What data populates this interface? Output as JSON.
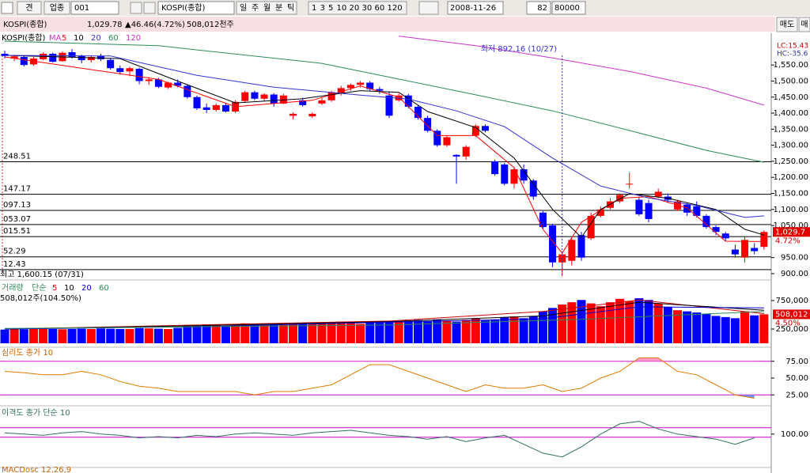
{
  "toolbar": {
    "buttons_left": [
      "견",
      "업종"
    ],
    "code": "001",
    "name": "KOSPI(종합)",
    "periods": [
      "일",
      "주",
      "월",
      "분",
      "틱"
    ],
    "intervals": [
      "1",
      "3",
      "5",
      "10",
      "20",
      "30",
      "60",
      "120"
    ],
    "date": "2008-11-26",
    "count": "82",
    "amount": "80000"
  },
  "info": {
    "name": "KOSPI(종합)",
    "price": "1,029.78",
    "change": "▲46.46(4.72%)",
    "volume": "508,012천주"
  },
  "side_buttons": [
    "매도",
    "매"
  ],
  "side_info": {
    "lc": "LC:15.43",
    "hc": "HC:-35.6"
  },
  "chart_data": [
    {
      "type": "candlestick",
      "title": "KOSPI(종합)",
      "legend_label": "MA",
      "up_color": "#ff0000",
      "down_color": "#0000ff",
      "candles": [
        [
          1585,
          1595,
          1570,
          1578
        ],
        [
          1570,
          1582,
          1562,
          1577
        ],
        [
          1575,
          1578,
          1545,
          1550
        ],
        [
          1552,
          1575,
          1548,
          1570
        ],
        [
          1568,
          1590,
          1565,
          1585
        ],
        [
          1585,
          1588,
          1558,
          1560
        ],
        [
          1562,
          1592,
          1560,
          1588
        ],
        [
          1590,
          1600,
          1570,
          1575
        ],
        [
          1578,
          1582,
          1555,
          1565
        ],
        [
          1565,
          1580,
          1558,
          1575
        ],
        [
          1578,
          1585,
          1562,
          1568
        ],
        [
          1566,
          1572,
          1535,
          1540
        ],
        [
          1540,
          1548,
          1520,
          1528
        ],
        [
          1530,
          1545,
          1515,
          1540
        ],
        [
          1538,
          1542,
          1490,
          1500
        ],
        [
          1500,
          1512,
          1488,
          1505
        ],
        [
          1505,
          1510,
          1478,
          1482
        ],
        [
          1480,
          1498,
          1475,
          1495
        ],
        [
          1495,
          1505,
          1480,
          1485
        ],
        [
          1485,
          1490,
          1445,
          1450
        ],
        [
          1450,
          1455,
          1410,
          1415
        ],
        [
          1418,
          1430,
          1400,
          1410
        ],
        [
          1410,
          1430,
          1405,
          1425
        ],
        [
          1425,
          1432,
          1402,
          1405
        ],
        [
          1405,
          1440,
          1400,
          1435
        ],
        [
          1438,
          1470,
          1432,
          1465
        ],
        [
          1465,
          1470,
          1440,
          1445
        ],
        [
          1445,
          1462,
          1438,
          1458
        ],
        [
          1458,
          1462,
          1420,
          1430
        ],
        [
          1430,
          1460,
          1428,
          1455
        ],
        [
          1392,
          1402,
          1380,
          1398
        ],
        [
          1440,
          1448,
          1420,
          1425
        ],
        [
          1390,
          1402,
          1385,
          1398
        ],
        [
          1430,
          1448,
          1425,
          1440
        ],
        [
          1440,
          1470,
          1435,
          1465
        ],
        [
          1462,
          1485,
          1455,
          1478
        ],
        [
          1478,
          1492,
          1470,
          1488
        ],
        [
          1488,
          1500,
          1480,
          1495
        ],
        [
          1495,
          1500,
          1470,
          1475
        ],
        [
          1475,
          1482,
          1460,
          1470
        ],
        [
          1455,
          1468,
          1385,
          1392
        ],
        [
          1440,
          1462,
          1435,
          1455
        ],
        [
          1455,
          1460,
          1415,
          1420
        ],
        [
          1420,
          1425,
          1380,
          1385
        ],
        [
          1385,
          1392,
          1340,
          1345
        ],
        [
          1345,
          1350,
          1295,
          1300
        ],
        [
          1300,
          1330,
          1295,
          1325
        ],
        [
          1270,
          1272,
          1180,
          1265
        ],
        [
          1265,
          1300,
          1255,
          1295
        ],
        [
          1330,
          1365,
          1325,
          1360
        ],
        [
          1360,
          1365,
          1340,
          1345
        ],
        [
          1250,
          1255,
          1205,
          1210
        ],
        [
          1240,
          1245,
          1175,
          1180
        ],
        [
          1180,
          1232,
          1165,
          1225
        ],
        [
          1225,
          1240,
          1180,
          1190
        ],
        [
          1190,
          1195,
          1130,
          1140
        ],
        [
          1090,
          1095,
          1040,
          1045
        ],
        [
          1050,
          1055,
          920,
          935
        ],
        [
          935,
          965,
          892.16,
          960
        ],
        [
          940,
          1015,
          925,
          1005
        ],
        [
          1020,
          1030,
          940,
          950
        ],
        [
          1010,
          1090,
          1005,
          1080
        ],
        [
          1080,
          1110,
          1075,
          1100
        ],
        [
          1105,
          1135,
          1100,
          1125
        ],
        [
          1125,
          1150,
          1120,
          1145
        ],
        [
          1180,
          1215,
          1165,
          1180
        ],
        [
          1130,
          1140,
          1080,
          1085
        ],
        [
          1120,
          1130,
          1060,
          1070
        ],
        [
          1140,
          1165,
          1135,
          1155
        ],
        [
          1140,
          1150,
          1120,
          1130
        ],
        [
          1100,
          1130,
          1095,
          1125
        ],
        [
          1115,
          1120,
          1080,
          1090
        ],
        [
          1110,
          1125,
          1075,
          1080
        ],
        [
          1080,
          1085,
          1040,
          1045
        ],
        [
          1045,
          1050,
          1020,
          1030
        ],
        [
          1025,
          1030,
          1000,
          1010
        ],
        [
          975,
          990,
          950,
          960
        ],
        [
          950,
          1015,
          935,
          1005
        ],
        [
          980,
          995,
          960,
          970
        ],
        [
          983.32,
          1035,
          975,
          1029.78
        ]
      ],
      "series": [
        {
          "name": "5",
          "color": "#ff0000",
          "x": [
            0,
            16,
            24,
            32,
            37,
            41,
            45,
            49,
            53,
            56,
            58,
            60,
            64,
            67,
            71,
            75,
            79
          ],
          "values": [
            1575,
            1505,
            1420,
            1440,
            1485,
            1450,
            1330,
            1330,
            1230,
            1038,
            964,
            1060,
            1135,
            1140,
            1105,
            1001,
            1000
          ]
        },
        {
          "name": "10",
          "color": "#000000",
          "x": [
            0,
            12,
            18,
            24,
            31,
            37,
            41,
            44,
            49,
            53,
            57,
            60,
            62,
            65,
            69,
            74,
            77,
            79
          ],
          "values": [
            1580,
            1570,
            1500,
            1432,
            1445,
            1470,
            1465,
            1405,
            1355,
            1260,
            1100,
            1013,
            1100,
            1149,
            1135,
            1100,
            1038,
            1020
          ]
        },
        {
          "name": "20",
          "color": "#3333cc",
          "x": [
            0,
            11,
            20,
            28,
            37,
            42,
            47,
            52,
            57,
            62,
            67,
            72,
            77,
            79
          ],
          "values": [
            1580,
            1578,
            1518,
            1481,
            1456,
            1444,
            1407,
            1358,
            1260,
            1173,
            1136,
            1112,
            1075,
            1080
          ]
        },
        {
          "name": "60",
          "color": "#2e8b57",
          "x": [
            0,
            16,
            33,
            41,
            49,
            57,
            65,
            73,
            79
          ],
          "values": [
            1624,
            1610,
            1555,
            1506,
            1457,
            1407,
            1346,
            1284,
            1247
          ]
        },
        {
          "name": "120",
          "color": "#cc33cc",
          "x": [
            41,
            49,
            57,
            65,
            73,
            79
          ],
          "values": [
            1640,
            1610,
            1572,
            1530,
            1478,
            1425
          ]
        }
      ],
      "ylim": [
        890,
        1649
      ],
      "yticks": [
        {
          "value": 900,
          "label": "900.00"
        },
        {
          "value": 950,
          "label": "950.00"
        },
        {
          "value": 1050,
          "label": "1,050.00"
        },
        {
          "value": 1100,
          "label": "1,100.00"
        },
        {
          "value": 1150,
          "label": "1,150.00"
        },
        {
          "value": 1200,
          "label": "1,200.00"
        },
        {
          "value": 1250,
          "label": "1,250.00"
        },
        {
          "value": 1300,
          "label": "1,300.00"
        },
        {
          "value": 1350,
          "label": "1,350.00"
        },
        {
          "value": 1400,
          "label": "1,400.00"
        },
        {
          "value": 1450,
          "label": "1,450.00"
        },
        {
          "value": 1500,
          "label": "1,500.00"
        },
        {
          "value": 1550,
          "label": "1,550.00"
        }
      ],
      "levels": [
        {
          "value": 1248.51,
          "label": "248.51"
        },
        {
          "value": 1147.17,
          "label": "147.17"
        },
        {
          "value": 1097.13,
          "label": "097.13"
        },
        {
          "value": 1053.07,
          "label": "053.07"
        },
        {
          "value": 1015.51,
          "label": "015.51"
        },
        {
          "value": 952.29,
          "label": "52.29"
        },
        {
          "value": 912.43,
          "label": "12.43"
        }
      ],
      "level_color": "#000000",
      "low": {
        "label": "최저 892.16 (10/27)",
        "x": 58
      },
      "high": {
        "label": "최고 1,600.15 (07/31)"
      },
      "last_label": {
        "value": 1029.78,
        "label": "1,029.7"
      },
      "change_label": "4.72%"
    },
    {
      "type": "bar",
      "title": "거래량",
      "legend_label": "단순",
      "subtitle": "508,012주(104.50%)",
      "values": [
        240000,
        250000,
        245000,
        255000,
        260000,
        250000,
        245000,
        250000,
        255000,
        250000,
        260000,
        255000,
        250000,
        250000,
        265000,
        260000,
        255000,
        250000,
        270000,
        300000,
        310000,
        330000,
        320000,
        305000,
        330000,
        350000,
        330000,
        320000,
        340000,
        320000,
        330000,
        350000,
        340000,
        360000,
        345000,
        380000,
        360000,
        340000,
        380000,
        360000,
        390000,
        380000,
        400000,
        410000,
        390000,
        420000,
        400000,
        380000,
        410000,
        430000,
        400000,
        420000,
        460000,
        470000,
        440000,
        480000,
        560000,
        620000,
        680000,
        720000,
        760000,
        700000,
        650000,
        720000,
        780000,
        740000,
        790000,
        760000,
        700000,
        640000,
        580000,
        560000,
        540000,
        520000,
        480000,
        460000,
        440000,
        560000,
        490000,
        508012
      ],
      "series": [
        {
          "name": "5",
          "color": "#cc0000",
          "x": [
            0,
            20,
            40,
            56,
            66,
            79
          ],
          "values": [
            250000,
            320000,
            390000,
            560000,
            760000,
            520000
          ]
        },
        {
          "name": "10",
          "color": "#000000",
          "x": [
            0,
            20,
            40,
            56,
            66,
            79
          ],
          "values": [
            250000,
            310000,
            380000,
            480000,
            720000,
            580000
          ]
        },
        {
          "name": "20",
          "color": "#0000cc",
          "x": [
            0,
            20,
            40,
            56,
            66,
            79
          ],
          "values": [
            250000,
            290000,
            370000,
            430000,
            640000,
            620000
          ]
        },
        {
          "name": "60",
          "color": "#2e8b57",
          "x": [
            0,
            40,
            60,
            79
          ],
          "values": [
            260000,
            320000,
            420000,
            560000
          ]
        }
      ],
      "ylim": [
        0,
        1055000
      ],
      "yticks": [
        {
          "value": 250000,
          "label": "250,000"
        },
        {
          "value": 750000,
          "label": "750,000"
        }
      ],
      "last_label": {
        "value": 508012,
        "label": "508,012"
      },
      "change_label": "4.50%"
    },
    {
      "type": "line",
      "title": "심리도 종가 10",
      "color": "#e07b00",
      "x": [
        0,
        2,
        4,
        6,
        8,
        10,
        12,
        14,
        16,
        18,
        20,
        22,
        24,
        26,
        28,
        30,
        32,
        34,
        36,
        38,
        40,
        42,
        44,
        46,
        48,
        50,
        52,
        54,
        56,
        58,
        60,
        62,
        64,
        66,
        68,
        70,
        72,
        74,
        76,
        78
      ],
      "values": [
        60,
        58,
        55,
        55,
        60,
        55,
        45,
        38,
        35,
        30,
        30,
        30,
        30,
        25,
        30,
        30,
        35,
        40,
        55,
        70,
        70,
        60,
        50,
        40,
        30,
        40,
        35,
        35,
        40,
        30,
        35,
        50,
        60,
        80,
        80,
        60,
        55,
        40,
        25,
        20
      ],
      "ylim": [
        10,
        90
      ],
      "yticks": [
        {
          "value": 25,
          "label": "25.00"
        },
        {
          "value": 50,
          "label": "50.00"
        },
        {
          "value": 75,
          "label": "75.00"
        }
      ],
      "levels": [
        75,
        25
      ],
      "level_color": "#cc00cc",
      "over_color": "#ff99cc",
      "under_color": "#6f9cff"
    },
    {
      "type": "line",
      "title": "이격도 종가 단순 10",
      "color": "#2f6f62",
      "x": [
        0,
        2,
        4,
        6,
        8,
        10,
        12,
        14,
        16,
        18,
        20,
        22,
        24,
        26,
        28,
        30,
        32,
        34,
        36,
        38,
        40,
        42,
        44,
        46,
        48,
        50,
        52,
        54,
        56,
        58,
        60,
        62,
        64,
        66,
        68,
        70,
        72,
        74,
        76,
        78
      ],
      "values": [
        101,
        100,
        99,
        101,
        102,
        100,
        99,
        97,
        98,
        97,
        99,
        98,
        100,
        101,
        100,
        99,
        101,
        102,
        103,
        101,
        99,
        98,
        96,
        98,
        94,
        97,
        99,
        92,
        85,
        82,
        90,
        100,
        108,
        110,
        104,
        100,
        98,
        96,
        92,
        97
      ],
      "ylim": [
        75,
        121
      ],
      "yticks": [
        {
          "value": 100,
          "label": "100.00"
        }
      ],
      "levels": [
        105,
        97.5
      ],
      "level_color": "#cc00cc"
    },
    {
      "type": "macd",
      "title": "MACDosc 12,26,9"
    }
  ]
}
